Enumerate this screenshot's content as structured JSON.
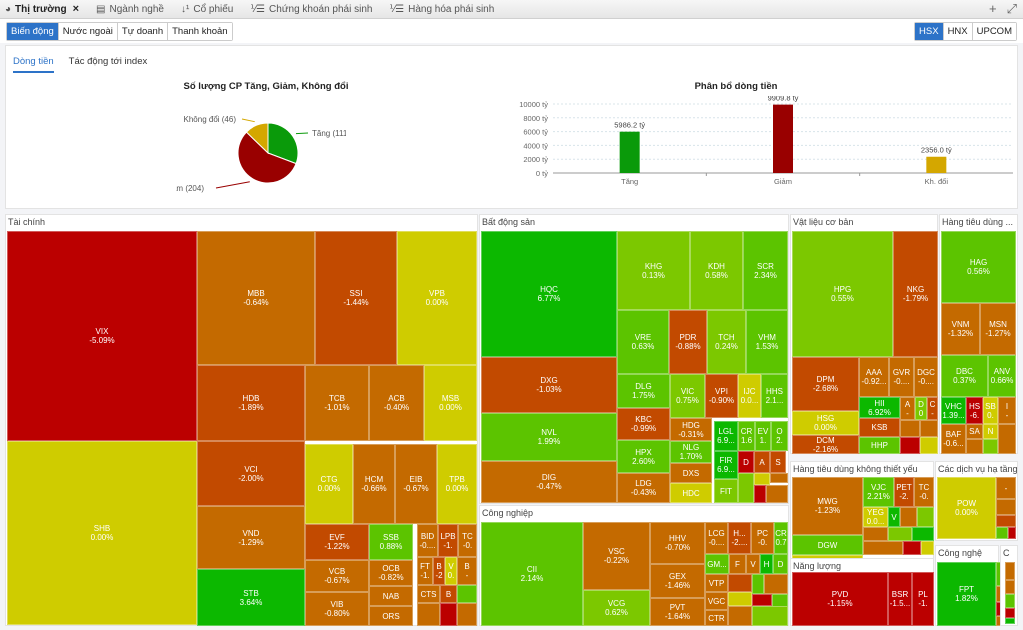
{
  "tabs": [
    {
      "label": "Thị trường",
      "icon": "pie-chart-icon",
      "active": true,
      "closable": true
    },
    {
      "label": "Ngành nghề",
      "icon": "list-icon",
      "active": false
    },
    {
      "label": "Cổ phiếu",
      "icon": "sort-icon",
      "active": false
    },
    {
      "label": "Chứng khoán phái sinh",
      "icon": "numbered-list-icon",
      "active": false
    },
    {
      "label": "Hàng hóa phái sinh",
      "icon": "numbered-list-icon",
      "active": false
    }
  ],
  "tab_actions": {
    "add": "+",
    "expand": "⤢"
  },
  "view_buttons": [
    {
      "label": "Biến động",
      "active": true
    },
    {
      "label": "Nước ngoài",
      "active": false
    },
    {
      "label": "Tự doanh",
      "active": false
    },
    {
      "label": "Thanh khoản",
      "active": false
    }
  ],
  "exchange_buttons": [
    {
      "label": "HSX",
      "active": true
    },
    {
      "label": "HNX",
      "active": false
    },
    {
      "label": "UPCOM",
      "active": false
    }
  ],
  "sub_tabs": [
    {
      "label": "Dòng tiền",
      "active": true
    },
    {
      "label": "Tác động tới index",
      "active": false
    }
  ],
  "chart_data": [
    {
      "type": "pie",
      "title": "Số lượng CP Tăng, Giảm, Không đổi",
      "slices": [
        {
          "label": "Tăng (111)",
          "name": "Tăng",
          "value": 111,
          "color": "#0a9a0a"
        },
        {
          "label": "Giảm (204)",
          "name": "Giảm",
          "value": 204,
          "color": "#990000"
        },
        {
          "label": "Không đổi (46)",
          "name": "Không đổi",
          "value": 46,
          "color": "#d4a700"
        }
      ]
    },
    {
      "type": "bar",
      "title": "Phân bổ dòng tiền",
      "categories": [
        "Tăng",
        "Giảm",
        "Kh. đổi"
      ],
      "values": [
        5986.2,
        9909.8,
        2356.0
      ],
      "data_labels": [
        "5986.2 tỷ",
        "9909.8 tỷ",
        "2356.0 tỷ"
      ],
      "colors": [
        "#0a9a0a",
        "#990000",
        "#d4a700"
      ],
      "yticks": [
        "0 tỷ",
        "2000 tỷ",
        "4000 tỷ",
        "6000 tỷ",
        "8000 tỷ",
        "10000 tỷ"
      ],
      "ylim": [
        0,
        10000
      ],
      "grid": true
    }
  ],
  "treemap": {
    "sectors": [
      {
        "name": "Tài chính",
        "stocks": [
          {
            "s": "VIX",
            "p": "-5.09%"
          },
          {
            "s": "SHB",
            "p": "0.00%"
          },
          {
            "s": "MBB",
            "p": "-0.64%"
          },
          {
            "s": "SSI",
            "p": "-1.44%"
          },
          {
            "s": "VPB",
            "p": "0.00%"
          },
          {
            "s": "HDB",
            "p": "-1.89%"
          },
          {
            "s": "TCB",
            "p": "-1.01%"
          },
          {
            "s": "ACB",
            "p": "-0.40%"
          },
          {
            "s": "MSB",
            "p": "0.00%"
          },
          {
            "s": "VCI",
            "p": "-2.00%"
          },
          {
            "s": "CTG",
            "p": "0.00%"
          },
          {
            "s": "HCM",
            "p": "-0.66%"
          },
          {
            "s": "EIB",
            "p": "-0.67%"
          },
          {
            "s": "TPB",
            "p": "0.00%"
          },
          {
            "s": "VND",
            "p": "-1.29%"
          },
          {
            "s": "EVF",
            "p": "-1.22%"
          },
          {
            "s": "SSB",
            "p": "0.88%"
          },
          {
            "s": "BID",
            "p": "-0...."
          },
          {
            "s": "LPB",
            "p": "-1."
          },
          {
            "s": "TC",
            "p": "-0."
          },
          {
            "s": "VCB",
            "p": "-0.67%"
          },
          {
            "s": "OCB",
            "p": "-0.82%"
          },
          {
            "s": "FT",
            "p": "-1."
          },
          {
            "s": "B",
            "p": "-2"
          },
          {
            "s": "V",
            "p": "0."
          },
          {
            "s": "B",
            "p": "-"
          },
          {
            "s": "STB",
            "p": "3.64%"
          },
          {
            "s": "VIB",
            "p": "-0.80%"
          },
          {
            "s": "NAB",
            "p": ""
          },
          {
            "s": "ORS",
            "p": ""
          },
          {
            "s": "CTS",
            "p": ""
          },
          {
            "s": "B",
            "p": ""
          }
        ]
      },
      {
        "name": "Bất động sản",
        "stocks": [
          {
            "s": "HQC",
            "p": "6.77%"
          },
          {
            "s": "KHG",
            "p": "0.13%"
          },
          {
            "s": "KDH",
            "p": "0.58%"
          },
          {
            "s": "SCR",
            "p": "2.34%"
          },
          {
            "s": "VRE",
            "p": "0.63%"
          },
          {
            "s": "PDR",
            "p": "-0.88%"
          },
          {
            "s": "TCH",
            "p": "0.24%"
          },
          {
            "s": "VHM",
            "p": "1.53%"
          },
          {
            "s": "DXG",
            "p": "-1.03%"
          },
          {
            "s": "DLG",
            "p": "1.75%"
          },
          {
            "s": "VIC",
            "p": "0.75%"
          },
          {
            "s": "VPI",
            "p": "-0.90%"
          },
          {
            "s": "IJC",
            "p": "0.0..."
          },
          {
            "s": "HHS",
            "p": "2.1..."
          },
          {
            "s": "NVL",
            "p": "1.99%"
          },
          {
            "s": "KBC",
            "p": "-0.99%"
          },
          {
            "s": "HDG",
            "p": "-0.31%"
          },
          {
            "s": "LGL",
            "p": "6.9..."
          },
          {
            "s": "CR",
            "p": "1.6"
          },
          {
            "s": "EV",
            "p": "1."
          },
          {
            "s": "O",
            "p": "2."
          },
          {
            "s": "DIG",
            "p": "-0.47%"
          },
          {
            "s": "HPX",
            "p": "2.60%"
          },
          {
            "s": "NLG",
            "p": "1.70%"
          },
          {
            "s": "FIR",
            "p": "6.9..."
          },
          {
            "s": "D",
            "p": ""
          },
          {
            "s": "A",
            "p": ""
          },
          {
            "s": "S",
            "p": ""
          },
          {
            "s": "LDG",
            "p": "-0.43%"
          },
          {
            "s": "DXS",
            "p": ""
          },
          {
            "s": "HDC",
            "p": ""
          },
          {
            "s": "FIT",
            "p": ""
          }
        ]
      },
      {
        "name": "Công nghiệp",
        "stocks": [
          {
            "s": "CII",
            "p": "2.14%"
          },
          {
            "s": "VSC",
            "p": "-0.22%"
          },
          {
            "s": "VCG",
            "p": "0.62%"
          },
          {
            "s": "HHV",
            "p": "-0.70%"
          },
          {
            "s": "GEX",
            "p": "-1.46%"
          },
          {
            "s": "PVT",
            "p": "-1.64%"
          },
          {
            "s": "LCG",
            "p": "-0...."
          },
          {
            "s": "H...",
            "p": "-2...."
          },
          {
            "s": "PC",
            "p": "-0."
          },
          {
            "s": "CR",
            "p": "0.7"
          },
          {
            "s": "GM...",
            "p": ""
          },
          {
            "s": "F",
            "p": ""
          },
          {
            "s": "V",
            "p": ""
          },
          {
            "s": "H",
            "p": ""
          },
          {
            "s": "D",
            "p": ""
          },
          {
            "s": "VTP",
            "p": ""
          },
          {
            "s": "VGC",
            "p": ""
          },
          {
            "s": "CTR",
            "p": ""
          }
        ]
      },
      {
        "name": "Vật liệu cơ bản",
        "stocks": [
          {
            "s": "HPG",
            "p": "0.55%"
          },
          {
            "s": "NKG",
            "p": "-1.79%"
          },
          {
            "s": "DPM",
            "p": "-2.68%"
          },
          {
            "s": "AAA",
            "p": "-0.92..."
          },
          {
            "s": "GVR",
            "p": "-0...."
          },
          {
            "s": "DGC",
            "p": "-0...."
          },
          {
            "s": "HII",
            "p": "6.92%"
          },
          {
            "s": "A",
            "p": "-"
          },
          {
            "s": "D",
            "p": "0"
          },
          {
            "s": "C",
            "p": "-"
          },
          {
            "s": "HSG",
            "p": "0.00%"
          },
          {
            "s": "KSB",
            "p": ""
          },
          {
            "s": "DCM",
            "p": "-2.16%"
          },
          {
            "s": "HHP",
            "p": ""
          }
        ]
      },
      {
        "name": "Hàng tiêu dùng ...",
        "stocks": [
          {
            "s": "HAG",
            "p": "0.56%"
          },
          {
            "s": "VNM",
            "p": "-1.32%"
          },
          {
            "s": "MSN",
            "p": "-1.27%"
          },
          {
            "s": "DBC",
            "p": "0.37%"
          },
          {
            "s": "ANV",
            "p": "0.66%"
          },
          {
            "s": "VHC",
            "p": "1.39..."
          },
          {
            "s": "HS",
            "p": "-6."
          },
          {
            "s": "SB",
            "p": "0."
          },
          {
            "s": "I",
            "p": "-"
          },
          {
            "s": "BAF",
            "p": "-0.6..."
          },
          {
            "s": "SA",
            "p": ""
          },
          {
            "s": "N",
            "p": ""
          }
        ]
      },
      {
        "name": "Hàng tiêu dùng không thiết yếu",
        "stocks": [
          {
            "s": "MWG",
            "p": "-1.23%"
          },
          {
            "s": "VJC",
            "p": "2.21%"
          },
          {
            "s": "PET",
            "p": "-2."
          },
          {
            "s": "TC",
            "p": "-0."
          },
          {
            "s": "YEG",
            "p": "0.0..."
          },
          {
            "s": "V",
            "p": ""
          },
          {
            "s": "DGW",
            "p": ""
          }
        ]
      },
      {
        "name": "Các dịch vụ hạ tầng",
        "stocks": [
          {
            "s": "POW",
            "p": "0.00%"
          },
          {
            "s": "-",
            "p": ""
          }
        ]
      },
      {
        "name": "Năng lượng",
        "stocks": [
          {
            "s": "PVD",
            "p": "-1.15%"
          },
          {
            "s": "BSR",
            "p": "-1.5..."
          },
          {
            "s": "PL",
            "p": "-1."
          }
        ]
      },
      {
        "name": "Công nghệ",
        "stocks": [
          {
            "s": "FPT",
            "p": "1.82%"
          }
        ]
      },
      {
        "name": "C",
        "stocks": []
      }
    ]
  }
}
